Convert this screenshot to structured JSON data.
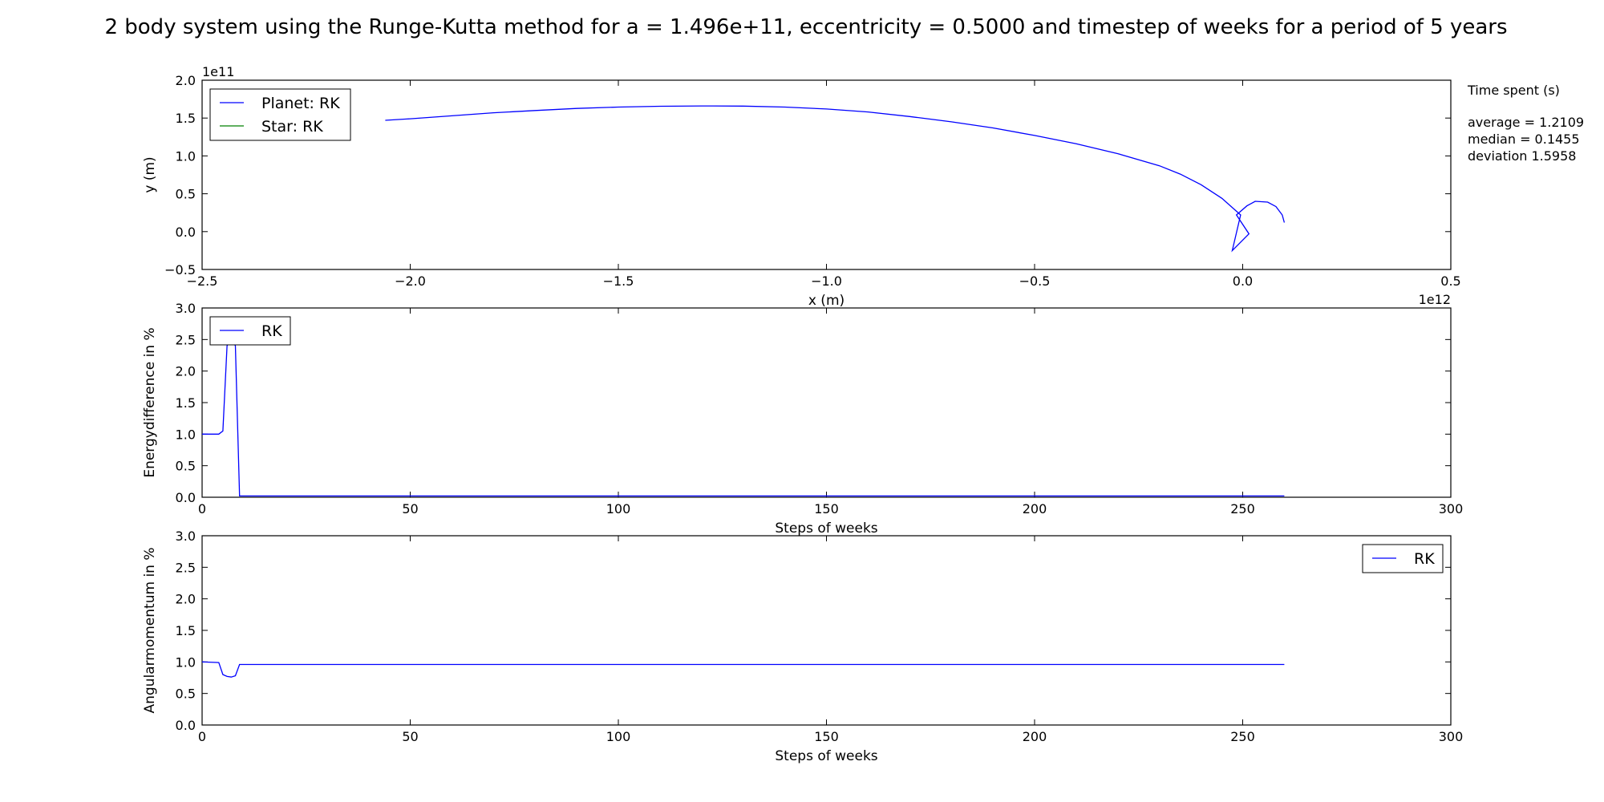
{
  "title": "2 body system using the Runge-Kutta method for a = 1.496e+11, eccentricity = 0.5000 and timestep of weeks for a period of 5 years",
  "side_panel": {
    "header": "Time spent (s)",
    "lines": [
      "average = 1.2109",
      "median = 0.1455",
      "deviation 1.5958"
    ]
  },
  "colors": {
    "planet": "#0000ff",
    "star": "#008000",
    "rk": "#0000ff"
  },
  "chart_data": [
    {
      "type": "line",
      "xlabel": "x (m)",
      "ylabel": "y (m)",
      "x_offset_label": "1e12",
      "y_offset_label": "1e11",
      "xlim": [
        -2.5,
        0.5
      ],
      "ylim": [
        -0.5,
        2.0
      ],
      "xticks": [
        -2.5,
        -2.0,
        -1.5,
        -1.0,
        -0.5,
        0.0,
        0.5
      ],
      "yticks": [
        -0.5,
        0.0,
        0.5,
        1.0,
        1.5,
        2.0
      ],
      "xtick_labels": [
        "−2.5",
        "−2.0",
        "−1.5",
        "−1.0",
        "−0.5",
        "0.0",
        "0.5"
      ],
      "ytick_labels": [
        "−0.5",
        "0.0",
        "0.5",
        "1.0",
        "1.5",
        "2.0"
      ],
      "legend_position": "upper-left",
      "series": [
        {
          "name": "Planet: RK",
          "color": "#0000ff",
          "x": [
            0.1,
            0.095,
            0.08,
            0.06,
            0.03,
            0.01,
            -0.015,
            0.015,
            -0.025,
            -0.005,
            -0.05,
            -0.1,
            -0.15,
            -0.2,
            -0.3,
            -0.4,
            -0.5,
            -0.6,
            -0.7,
            -0.8,
            -0.9,
            -1.0,
            -1.1,
            -1.2,
            -1.3,
            -1.4,
            -1.5,
            -1.6,
            -1.7,
            -1.8,
            -1.9,
            -2.0,
            -2.06
          ],
          "y": [
            0.12,
            0.22,
            0.33,
            0.39,
            0.4,
            0.34,
            0.22,
            -0.03,
            -0.25,
            0.22,
            0.44,
            0.62,
            0.76,
            0.87,
            1.03,
            1.16,
            1.27,
            1.37,
            1.45,
            1.52,
            1.58,
            1.62,
            1.645,
            1.658,
            1.66,
            1.656,
            1.645,
            1.627,
            1.6,
            1.57,
            1.53,
            1.49,
            1.47
          ]
        },
        {
          "name": "Star: RK",
          "color": "#008000",
          "x": [
            0.0,
            0.0
          ],
          "y": [
            0.0,
            0.0
          ]
        }
      ]
    },
    {
      "type": "line",
      "xlabel": "Steps of weeks",
      "ylabel": "Energydifference in %",
      "xlim": [
        0,
        300
      ],
      "ylim": [
        0.0,
        3.0
      ],
      "xticks": [
        0,
        50,
        100,
        150,
        200,
        250,
        300
      ],
      "yticks": [
        0.0,
        0.5,
        1.0,
        1.5,
        2.0,
        2.5,
        3.0
      ],
      "xtick_labels": [
        "0",
        "50",
        "100",
        "150",
        "200",
        "250",
        "300"
      ],
      "ytick_labels": [
        "0.0",
        "0.5",
        "1.0",
        "1.5",
        "2.0",
        "2.5",
        "3.0"
      ],
      "legend_position": "upper-left",
      "series": [
        {
          "name": "RK",
          "color": "#0000ff",
          "x": [
            0,
            4,
            5,
            6,
            7,
            8,
            9,
            260
          ],
          "y": [
            1.0,
            1.0,
            1.05,
            2.4,
            2.5,
            2.4,
            0.02,
            0.02
          ]
        }
      ]
    },
    {
      "type": "line",
      "xlabel": "Steps of weeks",
      "ylabel": "Angularmomentum in  %",
      "xlim": [
        0,
        300
      ],
      "ylim": [
        0.0,
        3.0
      ],
      "xticks": [
        0,
        50,
        100,
        150,
        200,
        250,
        300
      ],
      "yticks": [
        0.0,
        0.5,
        1.0,
        1.5,
        2.0,
        2.5,
        3.0
      ],
      "xtick_labels": [
        "0",
        "50",
        "100",
        "150",
        "200",
        "250",
        "300"
      ],
      "ytick_labels": [
        "0.0",
        "0.5",
        "1.0",
        "1.5",
        "2.0",
        "2.5",
        "3.0"
      ],
      "legend_position": "upper-right",
      "series": [
        {
          "name": "RK",
          "color": "#0000ff",
          "x": [
            0,
            4,
            5,
            6,
            7,
            8,
            9,
            260
          ],
          "y": [
            1.0,
            0.99,
            0.8,
            0.77,
            0.76,
            0.78,
            0.96,
            0.96
          ]
        }
      ]
    }
  ]
}
